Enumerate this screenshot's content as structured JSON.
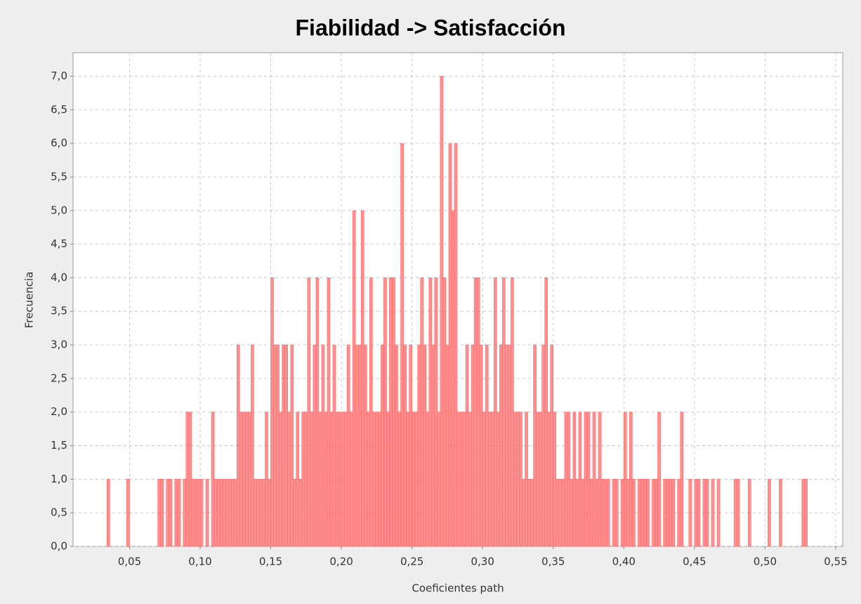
{
  "chart_data": {
    "type": "histogram",
    "title": "Fiabilidad -> Satisfacción",
    "x_label": "Coeficientes path",
    "y_label": "Frecuencia",
    "color": "#ff6a6a",
    "grid": true,
    "xlim": [
      0.01,
      0.555
    ],
    "ylim": [
      0,
      7.35
    ],
    "xticks": [
      {
        "value": 0.05,
        "label": "0,05"
      },
      {
        "value": 0.1,
        "label": "0,10"
      },
      {
        "value": 0.15,
        "label": "0,15"
      },
      {
        "value": 0.2,
        "label": "0,20"
      },
      {
        "value": 0.25,
        "label": "0,25"
      },
      {
        "value": 0.3,
        "label": "0,30"
      },
      {
        "value": 0.35,
        "label": "0,35"
      },
      {
        "value": 0.4,
        "label": "0,40"
      },
      {
        "value": 0.45,
        "label": "0,45"
      },
      {
        "value": 0.5,
        "label": "0,50"
      },
      {
        "value": 0.55,
        "label": "0,55"
      }
    ],
    "yticks": [
      {
        "value": 0,
        "label": "0,0"
      },
      {
        "value": 0.5,
        "label": "0,5"
      },
      {
        "value": 1,
        "label": "1,0"
      },
      {
        "value": 1.5,
        "label": "1,5"
      },
      {
        "value": 2,
        "label": "2,0"
      },
      {
        "value": 2.5,
        "label": "2,5"
      },
      {
        "value": 3,
        "label": "3,0"
      },
      {
        "value": 3.5,
        "label": "3,5"
      },
      {
        "value": 4,
        "label": "4,0"
      },
      {
        "value": 4.5,
        "label": "4,5"
      },
      {
        "value": 5,
        "label": "5,0"
      },
      {
        "value": 5.5,
        "label": "5,5"
      },
      {
        "value": 6,
        "label": "6,0"
      },
      {
        "value": 6.5,
        "label": "6,5"
      },
      {
        "value": 7,
        "label": "7,0"
      }
    ],
    "bins": [
      0.034,
      0.036,
      0.038,
      0.04,
      0.042,
      0.044,
      0.046,
      0.048,
      0.05,
      0.052,
      0.054,
      0.056,
      0.058,
      0.06,
      0.062,
      0.064,
      0.066,
      0.068,
      0.07,
      0.072,
      0.074,
      0.076,
      0.078,
      0.08,
      0.082,
      0.084,
      0.086,
      0.088,
      0.09,
      0.092,
      0.094,
      0.096,
      0.098,
      0.1,
      0.102,
      0.104,
      0.106,
      0.108,
      0.11,
      0.112,
      0.114,
      0.116,
      0.118,
      0.12,
      0.122,
      0.124,
      0.126,
      0.128,
      0.13,
      0.132,
      0.134,
      0.136,
      0.138,
      0.14,
      0.142,
      0.144,
      0.146,
      0.148,
      0.15,
      0.152,
      0.154,
      0.156,
      0.158,
      0.16,
      0.162,
      0.164,
      0.166,
      0.168,
      0.17,
      0.172,
      0.174,
      0.176,
      0.178,
      0.18,
      0.182,
      0.184,
      0.186,
      0.188,
      0.19,
      0.192,
      0.194,
      0.196,
      0.198,
      0.2,
      0.202,
      0.204,
      0.206,
      0.208,
      0.21,
      0.212,
      0.214,
      0.216,
      0.218,
      0.22,
      0.222,
      0.224,
      0.226,
      0.228,
      0.23,
      0.232,
      0.234,
      0.236,
      0.238,
      0.24,
      0.242,
      0.244,
      0.246,
      0.248,
      0.25,
      0.252,
      0.254,
      0.256,
      0.258,
      0.26,
      0.262,
      0.264,
      0.266,
      0.268,
      0.27,
      0.272,
      0.274,
      0.276,
      0.278,
      0.28,
      0.282,
      0.284,
      0.286,
      0.288,
      0.29,
      0.292,
      0.294,
      0.296,
      0.298,
      0.3,
      0.302,
      0.304,
      0.306,
      0.308,
      0.31,
      0.312,
      0.314,
      0.316,
      0.318,
      0.32,
      0.322,
      0.324,
      0.326,
      0.328,
      0.33,
      0.332,
      0.334,
      0.336,
      0.338,
      0.34,
      0.342,
      0.344,
      0.346,
      0.348,
      0.35,
      0.352,
      0.354,
      0.356,
      0.358,
      0.36,
      0.362,
      0.364,
      0.366,
      0.368,
      0.37,
      0.372,
      0.374,
      0.376,
      0.378,
      0.38,
      0.382,
      0.384,
      0.386,
      0.388,
      0.39,
      0.392,
      0.394,
      0.396,
      0.398,
      0.4,
      0.402,
      0.404,
      0.406,
      0.408,
      0.41,
      0.412,
      0.414,
      0.416,
      0.418,
      0.42,
      0.422,
      0.424,
      0.426,
      0.428,
      0.43,
      0.432,
      0.434,
      0.436,
      0.438,
      0.44,
      0.442,
      0.444,
      0.446,
      0.448,
      0.45,
      0.452,
      0.454,
      0.456,
      0.458,
      0.46,
      0.462,
      0.464,
      0.466,
      0.468,
      0.47,
      0.472,
      0.474,
      0.476,
      0.478,
      0.48,
      0.482,
      0.484,
      0.486,
      0.488,
      0.49,
      0.492,
      0.494,
      0.496,
      0.498,
      0.5,
      0.502,
      0.504,
      0.506,
      0.508,
      0.51,
      0.512,
      0.514,
      0.516,
      0.518,
      0.52,
      0.522,
      0.524,
      0.526,
      0.528,
      0.53
    ],
    "values": [
      1,
      0,
      0,
      0,
      0,
      0,
      0,
      1,
      0,
      0,
      0,
      0,
      0,
      0,
      0,
      0,
      0,
      0,
      1,
      1,
      0,
      1,
      1,
      0,
      1,
      1,
      0,
      1,
      2,
      2,
      1,
      1,
      1,
      1,
      0,
      1,
      0,
      2,
      1,
      1,
      1,
      1,
      1,
      1,
      1,
      1,
      3,
      2,
      2,
      2,
      2,
      3,
      1,
      1,
      1,
      1,
      2,
      1,
      4,
      3,
      3,
      2,
      3,
      3,
      2,
      3,
      1,
      2,
      1,
      2,
      2,
      4,
      2,
      3,
      4,
      2,
      3,
      2,
      4,
      2,
      3,
      2,
      2,
      2,
      2,
      3,
      2,
      5,
      3,
      3,
      5,
      3,
      2,
      4,
      2,
      2,
      2,
      3,
      4,
      2,
      4,
      4,
      3,
      2,
      6,
      3,
      2,
      3,
      2,
      2,
      3,
      4,
      3,
      2,
      4,
      3,
      4,
      2,
      7,
      4,
      3,
      6,
      5,
      6,
      2,
      2,
      2,
      3,
      2,
      3,
      4,
      4,
      3,
      2,
      3,
      2,
      2,
      4,
      2,
      3,
      4,
      3,
      3,
      4,
      2,
      2,
      2,
      1,
      2,
      1,
      1,
      3,
      2,
      2,
      3,
      4,
      2,
      3,
      2,
      1,
      1,
      1,
      2,
      2,
      1,
      2,
      1,
      2,
      1,
      2,
      2,
      1,
      2,
      1,
      2,
      1,
      1,
      1,
      0,
      1,
      1,
      0,
      1,
      2,
      1,
      2,
      1,
      0,
      1,
      1,
      1,
      1,
      0,
      1,
      1,
      2,
      0,
      1,
      1,
      1,
      1,
      0,
      1,
      2,
      0,
      0,
      1,
      0,
      1,
      1,
      0,
      1,
      1,
      0,
      1,
      0,
      1,
      0,
      0,
      0,
      0,
      0,
      1,
      1,
      0,
      0,
      0,
      1,
      0,
      0,
      0,
      0,
      0,
      0,
      1,
      0,
      0,
      0,
      1,
      0,
      0,
      0,
      0,
      0,
      0,
      0,
      1,
      1
    ]
  }
}
